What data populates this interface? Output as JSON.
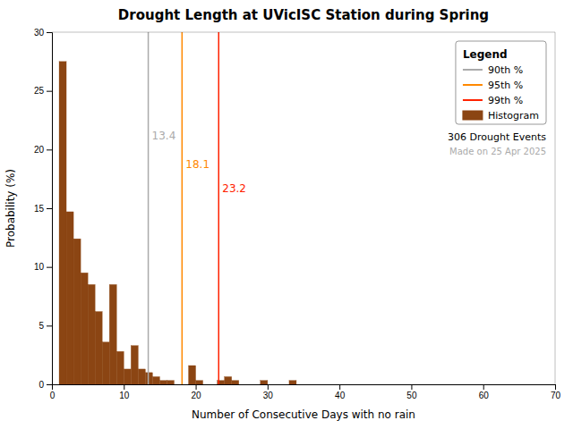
{
  "chart_data": {
    "type": "histogram",
    "title": "Drought Length at UVicISC Station during Spring",
    "x_label": "Number of Consecutive Days with no rain",
    "y_label": "Probability (%)",
    "bins": [
      1,
      2,
      3,
      4,
      5,
      6,
      7,
      8,
      9,
      10,
      11,
      12,
      13,
      14,
      15,
      16,
      17,
      18,
      19,
      20,
      21,
      22,
      23,
      24,
      25,
      26,
      27,
      28,
      29,
      30,
      31,
      32,
      33,
      34,
      35,
      36,
      37,
      38,
      39,
      40,
      41,
      42,
      43,
      44,
      45,
      46,
      47,
      48,
      49,
      50,
      51,
      52,
      53,
      54,
      55,
      56,
      57,
      58,
      59,
      60,
      61
    ],
    "series": [
      {
        "name": "Histogram",
        "color": "#8B4513",
        "values": [
          27.5,
          14.7,
          12.4,
          9.5,
          8.5,
          6.2,
          3.6,
          8.5,
          2.8,
          1.3,
          3.3,
          1.3,
          1.0,
          0.65,
          0.33,
          0.33,
          0.0,
          0.0,
          1.6,
          0.33,
          0.0,
          0.0,
          0.33,
          0.65,
          0.33,
          0.0,
          0.0,
          0.0,
          0.33,
          0.0,
          0.0,
          0.0,
          0.33,
          0.0,
          0.0,
          0.0,
          0.0,
          0.0,
          0.0,
          0.0,
          0.0,
          0.0,
          0.0,
          0.0,
          0.0,
          0.0,
          0.0,
          0.0,
          0.0,
          0.0,
          0.0,
          0.0,
          0.0,
          0.0,
          0.0,
          0.0,
          0.0,
          0.0,
          0.0,
          0.0
        ]
      }
    ],
    "percentiles": [
      {
        "name": "90th %",
        "value": 13.4,
        "color": "#aaaaaa"
      },
      {
        "name": "95th %",
        "value": 18.1,
        "color": "#ff8800"
      },
      {
        "name": "99th %",
        "value": 23.2,
        "color": "#ff2200"
      }
    ],
    "data_labels": true,
    "legend_title": "Legend",
    "legend": "upper-right",
    "annotations": [
      {
        "text": "306 Drought Events",
        "color": "#000000"
      },
      {
        "text": "Made on 25 Apr 2025",
        "color": "#aaaaaa"
      }
    ],
    "xlim": [
      0,
      70
    ],
    "xticks": [
      0,
      10,
      20,
      30,
      40,
      50,
      60,
      70
    ],
    "ylim": [
      0,
      30
    ],
    "yticks": [
      0,
      5,
      10,
      15,
      20,
      25,
      30
    ],
    "grid": false
  }
}
